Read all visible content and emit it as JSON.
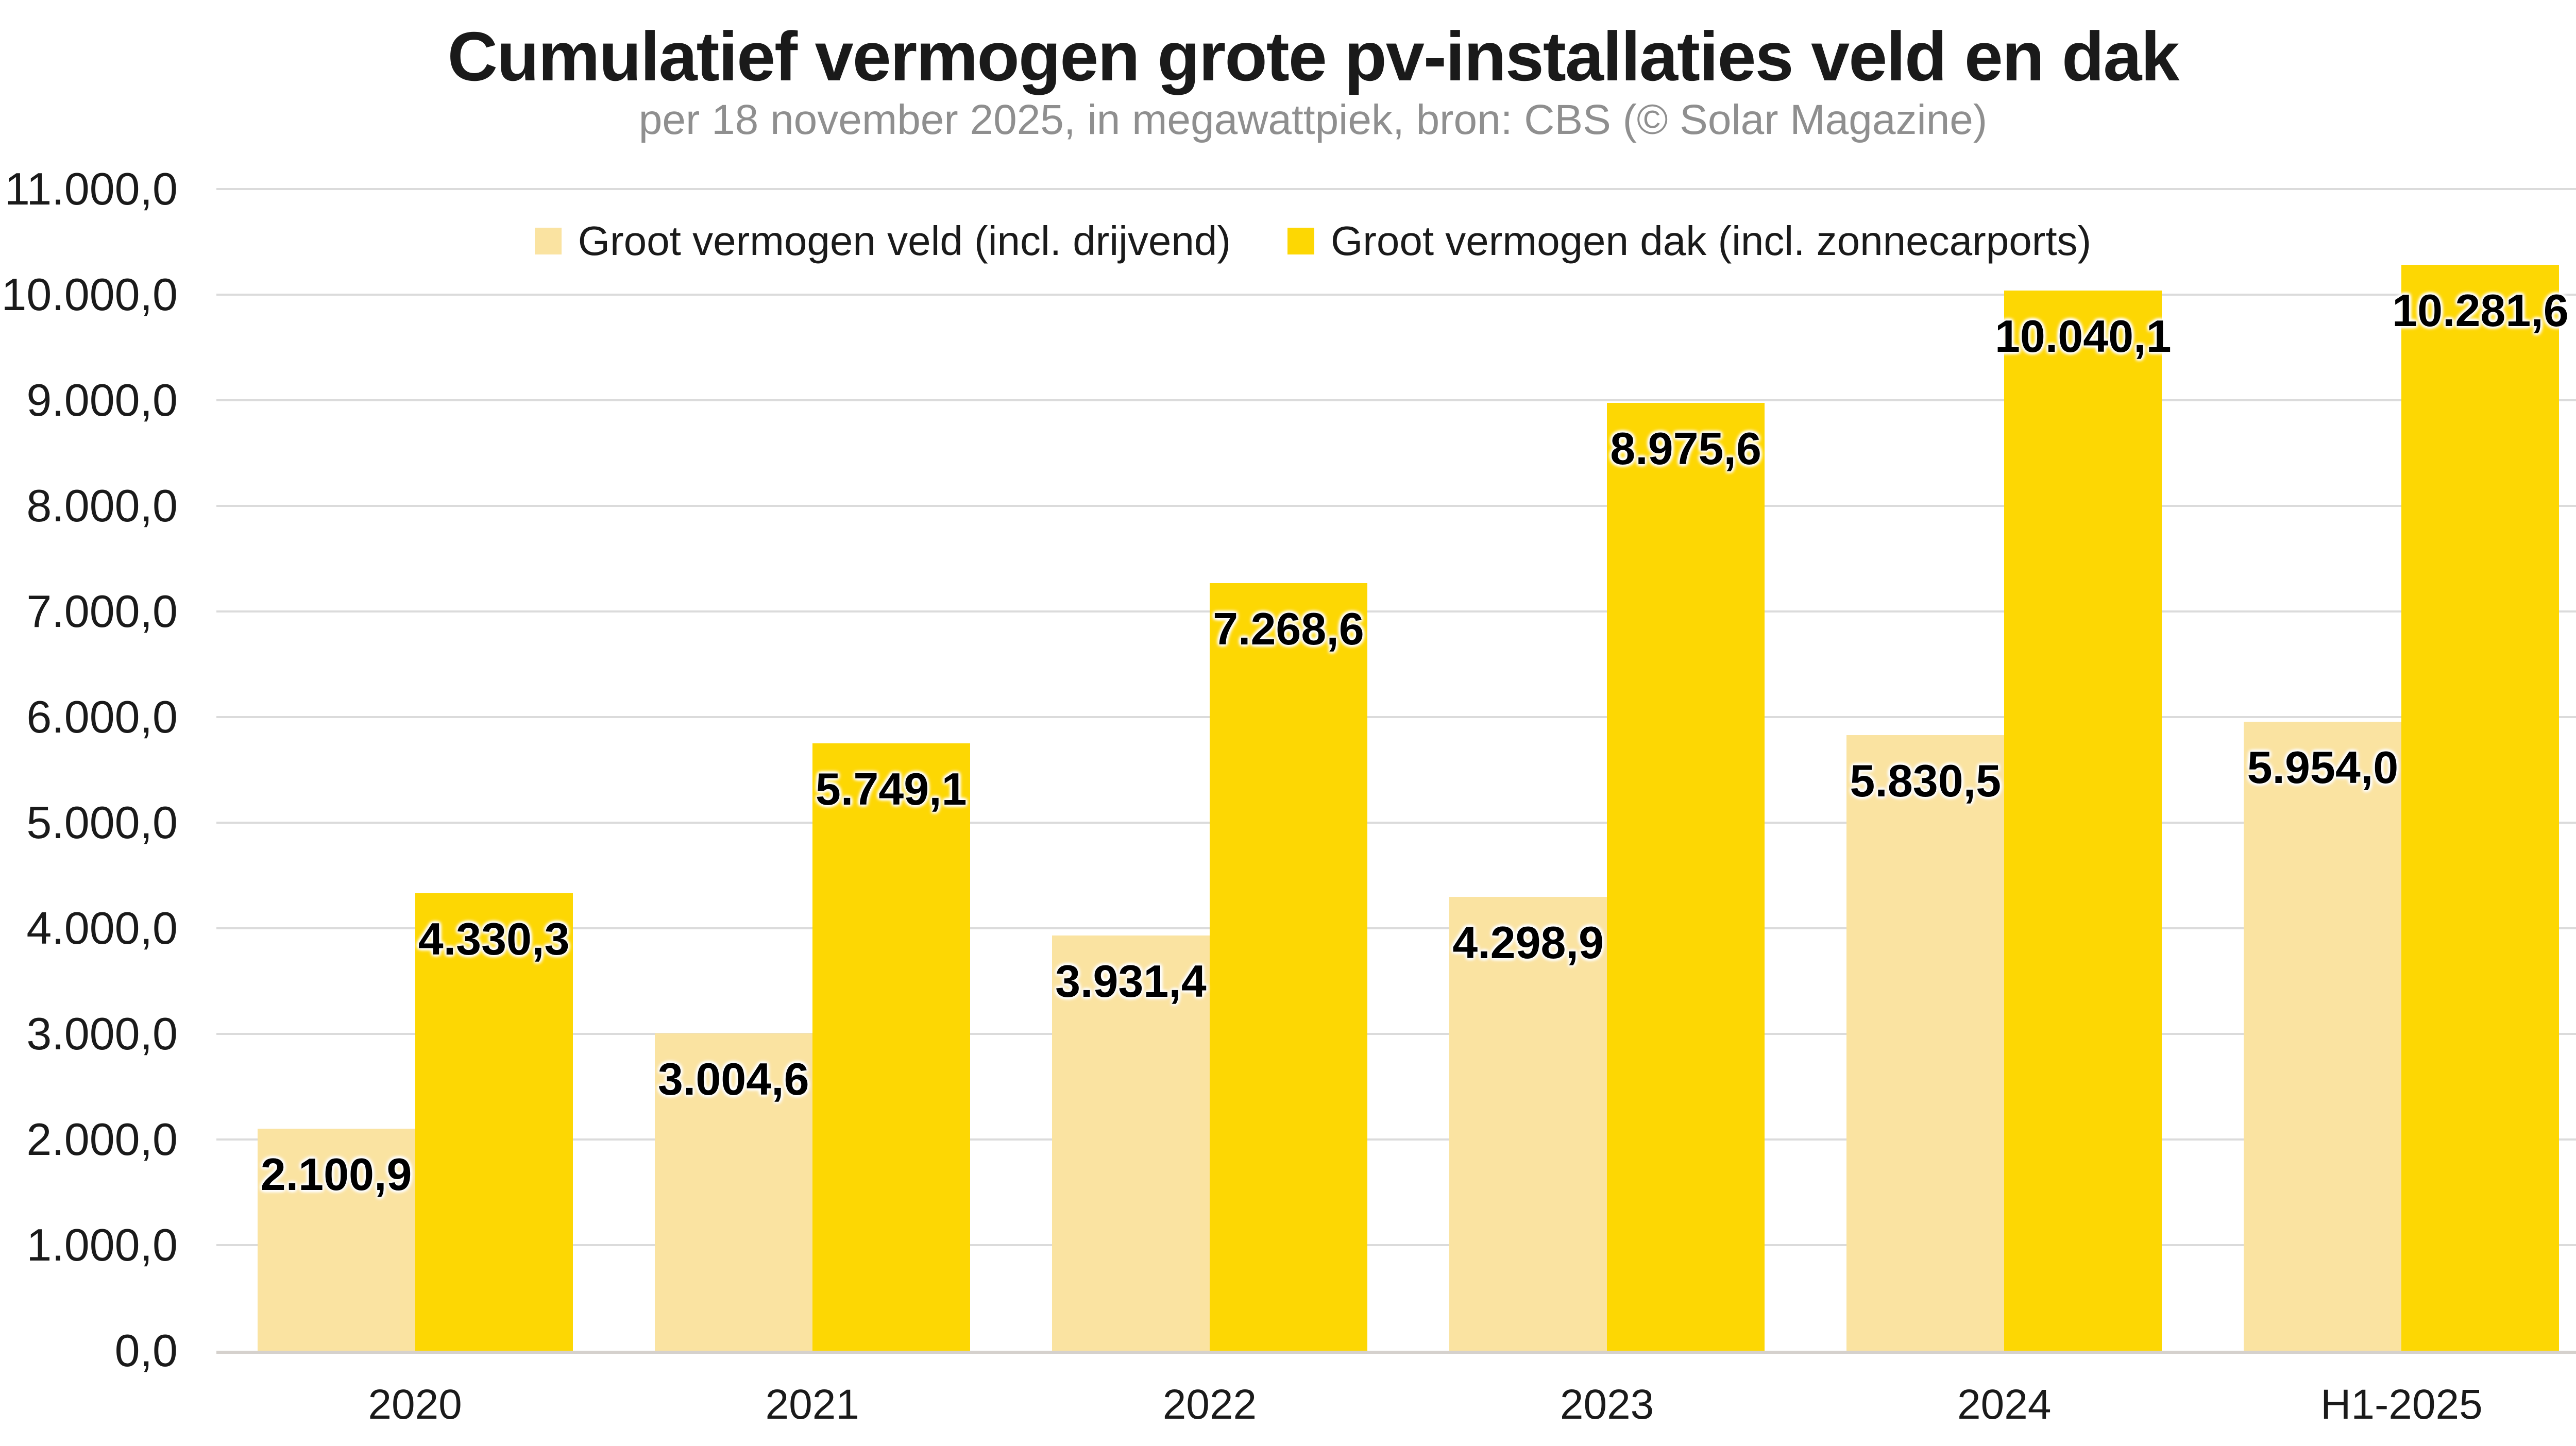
{
  "title": "Cumulatief vermogen grote pv-installaties veld en dak",
  "subtitle": "per 18 november 2025, in megawattpiek, bron: CBS (© Solar Magazine)",
  "colors": {
    "veld": "#FAE3A1",
    "dak": "#FDD703",
    "gridline": "#DBDBDB",
    "axis_line": "#D5D1CD",
    "title_text": "#1A1A1A",
    "subtitle_text": "#8F8F8F",
    "data_label_text": "#000000"
  },
  "chart_data": {
    "type": "bar",
    "title": "Cumulatief vermogen grote pv-installaties veld en dak",
    "subtitle": "per 18 november 2025, in megawattpiek, bron: CBS (© Solar Magazine)",
    "categories": [
      "2020",
      "2021",
      "2022",
      "2023",
      "2024",
      "H1-2025"
    ],
    "series": [
      {
        "name": "Groot vermogen veld (incl. drijvend)",
        "color": "#FAE3A1",
        "values": [
          2100.9,
          3004.6,
          3931.4,
          4298.9,
          5830.5,
          5954.0
        ],
        "labels": [
          "2.100,9",
          "3.004,6",
          "3.931,4",
          "4.298,9",
          "5.830,5",
          "5.954,0"
        ]
      },
      {
        "name": "Groot vermogen dak (incl. zonnecarports)",
        "color": "#FDD703",
        "values": [
          4330.3,
          5749.1,
          7268.6,
          8975.6,
          10040.1,
          10281.6
        ],
        "labels": [
          "4.330,3",
          "5.749,1",
          "7.268,6",
          "8.975,6",
          "10.040,1",
          "10.281,6"
        ]
      }
    ],
    "ylim": [
      0,
      11000
    ],
    "y_ticks": [
      {
        "value": 11000,
        "label": "11.000,0"
      },
      {
        "value": 10000,
        "label": "10.000,0"
      },
      {
        "value": 9000,
        "label": "9.000,0"
      },
      {
        "value": 8000,
        "label": "8.000,0"
      },
      {
        "value": 7000,
        "label": "7.000,0"
      },
      {
        "value": 6000,
        "label": "6.000,0"
      },
      {
        "value": 5000,
        "label": "5.000,0"
      },
      {
        "value": 4000,
        "label": "4.000,0"
      },
      {
        "value": 3000,
        "label": "3.000,0"
      },
      {
        "value": 2000,
        "label": "2.000,0"
      },
      {
        "value": 1000,
        "label": "1.000,0"
      },
      {
        "value": 0,
        "label": "0,0"
      }
    ],
    "grid": "horizontal",
    "legend_position": "top"
  }
}
